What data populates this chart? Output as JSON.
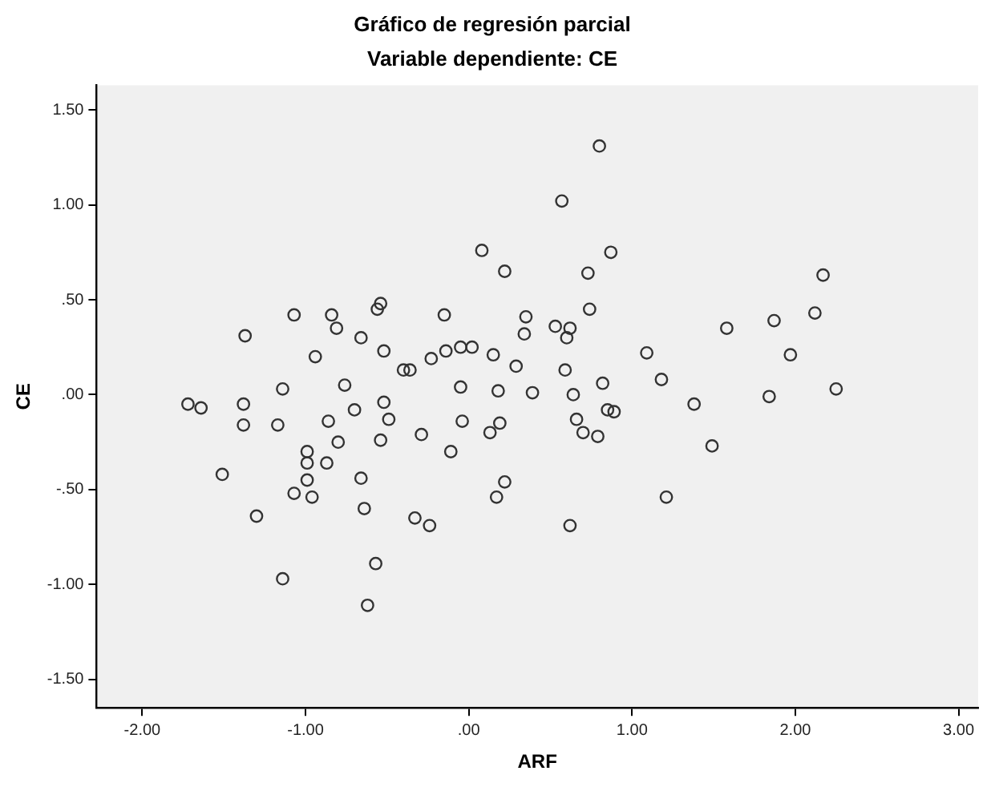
{
  "chart_data": {
    "type": "scatter",
    "title": "Gráfico de regresión parcial",
    "subtitle": "Variable dependiente: CE",
    "xlabel": "ARF",
    "ylabel": "CE",
    "x": [
      0.08,
      0.22,
      -0.54,
      -0.56,
      -1.07,
      -0.84,
      -0.15,
      -1.37,
      -0.81,
      -0.66,
      -0.94,
      -0.52,
      -0.14,
      -0.05,
      0.02,
      0.15,
      0.29,
      -0.4,
      -0.36,
      -0.23,
      -1.14,
      -0.76,
      -0.05,
      0.18,
      -1.72,
      -1.64,
      -1.38,
      -1.38,
      -1.17,
      -1.51,
      -1.3,
      -1.14,
      -1.07,
      -0.96,
      -0.99,
      -0.99,
      -0.99,
      -0.87,
      -0.86,
      -0.8,
      -0.7,
      -0.66,
      -0.64,
      -0.57,
      -0.62,
      -0.54,
      -0.52,
      -0.49,
      -0.33,
      -0.29,
      -0.24,
      -0.11,
      -0.04,
      0.13,
      0.19,
      0.17,
      0.22,
      0.8,
      0.57,
      0.87,
      0.73,
      2.17,
      0.74,
      2.12,
      0.35,
      0.34,
      1.87,
      0.53,
      0.62,
      0.6,
      1.58,
      1.09,
      1.97,
      0.59,
      0.82,
      1.18,
      0.39,
      0.64,
      1.38,
      1.84,
      2.25,
      0.85,
      0.89,
      0.66,
      0.7,
      0.79,
      1.49,
      1.21,
      0.62
    ],
    "values": [
      0.76,
      0.65,
      0.48,
      0.45,
      0.42,
      0.42,
      0.42,
      0.31,
      0.35,
      0.3,
      0.2,
      0.23,
      0.23,
      0.25,
      0.25,
      0.21,
      0.15,
      0.13,
      0.13,
      0.19,
      0.03,
      0.05,
      0.04,
      0.02,
      -0.05,
      -0.07,
      -0.05,
      -0.16,
      -0.16,
      -0.42,
      -0.64,
      -0.97,
      -0.52,
      -0.54,
      -0.3,
      -0.36,
      -0.45,
      -0.36,
      -0.14,
      -0.25,
      -0.08,
      -0.44,
      -0.6,
      -0.89,
      -1.11,
      -0.24,
      -0.04,
      -0.13,
      -0.65,
      -0.21,
      -0.69,
      -0.3,
      -0.14,
      -0.2,
      -0.15,
      -0.54,
      -0.46,
      1.31,
      1.02,
      0.75,
      0.64,
      0.63,
      0.45,
      0.43,
      0.41,
      0.32,
      0.39,
      0.36,
      0.35,
      0.3,
      0.35,
      0.22,
      0.21,
      0.13,
      0.06,
      0.08,
      0.01,
      0.0,
      -0.05,
      -0.01,
      0.03,
      -0.08,
      -0.09,
      -0.13,
      -0.2,
      -0.22,
      -0.27,
      -0.54,
      -0.69
    ],
    "color": "#333333",
    "marker": "circle",
    "grid": false,
    "legend": false,
    "xlim": [
      -2.28,
      3.12
    ],
    "ylim": [
      -1.65,
      1.63
    ],
    "xticks": [
      {
        "value": -2,
        "label": "-2.00"
      },
      {
        "value": -1,
        "label": "-1.00"
      },
      {
        "value": 0,
        "label": ".00"
      },
      {
        "value": 1,
        "label": "1.00"
      },
      {
        "value": 2,
        "label": "2.00"
      },
      {
        "value": 3,
        "label": "3.00"
      }
    ],
    "yticks": [
      {
        "value": -1.5,
        "label": "-1.50"
      },
      {
        "value": -1,
        "label": "-1.00"
      },
      {
        "value": -0.5,
        "label": "-.50"
      },
      {
        "value": 0,
        "label": ".00"
      },
      {
        "value": 0.5,
        "label": ".50"
      },
      {
        "value": 1,
        "label": "1.00"
      },
      {
        "value": 1.5,
        "label": "1.50"
      }
    ]
  }
}
